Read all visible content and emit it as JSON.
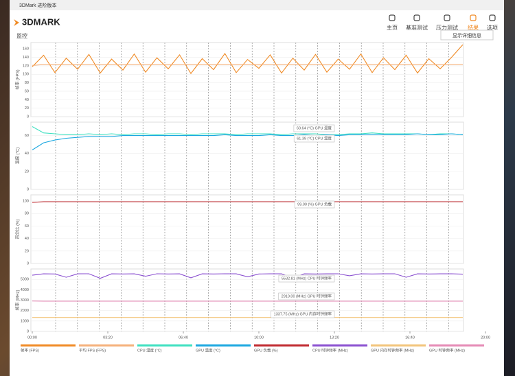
{
  "window": {
    "title": "3DMark 进阶版本"
  },
  "header": {
    "logo": "3DMARK",
    "nav": [
      "主页",
      "基准测试",
      "压力测试",
      "结果",
      "选项"
    ],
    "active": 3,
    "button": "显示详细信息"
  },
  "section": {
    "title": "监控"
  },
  "chart_data": [
    {
      "type": "line",
      "ylabel": "帧率 (FPS)",
      "grid": true,
      "x": [
        0,
        30,
        60,
        90,
        120,
        150,
        180,
        210,
        240,
        270,
        300,
        330,
        360,
        390,
        420,
        450,
        480,
        510,
        540,
        570,
        600,
        630,
        660,
        690,
        720,
        750,
        780,
        810,
        840,
        870,
        900,
        930,
        960,
        990,
        1020,
        1050,
        1080,
        1110,
        1140
      ],
      "xlim": [
        0,
        1200
      ],
      "ylim": [
        0,
        175
      ],
      "yticks": [
        0,
        20,
        40,
        60,
        80,
        100,
        120,
        140,
        160
      ],
      "series": [
        {
          "name": "帧率 (FPS)",
          "color": "#f08a24",
          "values": [
            118,
            145,
            104,
            138,
            112,
            147,
            103,
            136,
            110,
            148,
            105,
            139,
            113,
            146,
            102,
            137,
            111,
            149,
            104,
            135,
            114,
            146,
            103,
            138,
            110,
            147,
            105,
            136,
            112,
            148,
            104,
            139,
            111,
            145,
            103,
            137,
            113,
            140,
            170
          ]
        },
        {
          "name": "平均 FPS (FPS)",
          "color": "#f5b07a",
          "values": [
            121,
            123,
            123,
            123,
            123,
            123,
            123,
            123,
            123,
            123,
            123,
            123,
            123,
            123,
            123,
            123,
            123,
            123,
            123,
            123,
            123,
            123,
            123,
            123,
            123,
            123,
            123,
            123,
            123,
            123,
            123,
            123,
            123,
            123,
            123,
            123,
            123,
            123,
            123
          ]
        }
      ],
      "annotations": []
    },
    {
      "type": "line",
      "ylabel": "温度 (°C)",
      "grid": true,
      "x": [
        0,
        30,
        60,
        90,
        120,
        150,
        180,
        210,
        240,
        270,
        300,
        330,
        360,
        390,
        420,
        450,
        480,
        510,
        540,
        570,
        600,
        630,
        660,
        690,
        720,
        750,
        780,
        810,
        840,
        870,
        900,
        930,
        960,
        990,
        1020,
        1050,
        1080,
        1110,
        1140
      ],
      "xlim": [
        0,
        1200
      ],
      "ylim": [
        0,
        75
      ],
      "yticks": [
        0,
        20,
        40,
        60
      ],
      "series": [
        {
          "name": "CPU 温度 (°C)",
          "color": "#3de0c0",
          "values": [
            70,
            63,
            62,
            61,
            61,
            62,
            61,
            62,
            61,
            62,
            62,
            61,
            62,
            62,
            61,
            62,
            62,
            62,
            61,
            62,
            62,
            62,
            61,
            62,
            62,
            62,
            61,
            61,
            62,
            62,
            63,
            62,
            62,
            62,
            62,
            61,
            62,
            62,
            61
          ]
        },
        {
          "name": "GPU 温度 (°C)",
          "color": "#1aa7e0",
          "values": [
            44,
            52,
            55,
            57,
            58,
            59,
            59,
            59,
            60,
            60,
            60,
            60,
            60,
            60,
            60,
            60,
            60,
            61,
            60,
            60,
            60,
            61,
            60,
            60,
            61,
            60,
            61,
            60,
            61,
            61,
            61,
            61,
            61,
            61,
            62,
            61,
            61,
            62,
            61
          ]
        }
      ],
      "annotations": [
        "60.64 (°C) GPU 温度",
        "61.39 (°C) CPU 温度"
      ]
    },
    {
      "type": "line",
      "ylabel": "百分比 (%)",
      "grid": true,
      "x": [
        0,
        30,
        60,
        90,
        120,
        150,
        180,
        210,
        240,
        270,
        300,
        330,
        360,
        390,
        420,
        450,
        480,
        510,
        540,
        570,
        600,
        630,
        660,
        690,
        720,
        750,
        780,
        810,
        840,
        870,
        900,
        930,
        960,
        990,
        1020,
        1050,
        1080,
        1110,
        1140
      ],
      "xlim": [
        0,
        1200
      ],
      "ylim": [
        0,
        110
      ],
      "yticks": [
        0,
        20,
        40,
        60,
        80,
        100
      ],
      "series": [
        {
          "name": "GPU 负载 (%)",
          "color": "#c0282e",
          "values": [
            98,
            99,
            99,
            99,
            99,
            99,
            99,
            99,
            99,
            99,
            99,
            99,
            99,
            99,
            99,
            99,
            99,
            99,
            99,
            99,
            99,
            99,
            99,
            99,
            99,
            99,
            99,
            99,
            99,
            99,
            99,
            99,
            99,
            99,
            99,
            99,
            99,
            99,
            99
          ]
        }
      ],
      "annotations": [
        "99.00 (%) GPU 负载"
      ]
    },
    {
      "type": "line",
      "ylabel": "频率 (MHz)",
      "grid": true,
      "x": [
        0,
        30,
        60,
        90,
        120,
        150,
        180,
        210,
        240,
        270,
        300,
        330,
        360,
        390,
        420,
        450,
        480,
        510,
        540,
        570,
        600,
        630,
        660,
        690,
        720,
        750,
        780,
        810,
        840,
        870,
        900,
        930,
        960,
        990,
        1020,
        1050,
        1080,
        1110,
        1140
      ],
      "xlim": [
        0,
        1200
      ],
      "ylim": [
        0,
        6000
      ],
      "yticks": [
        0,
        1000,
        2000,
        3000,
        4000,
        5000
      ],
      "xticks": [
        {
          "value": 0,
          "label": "00:00"
        },
        {
          "value": 200,
          "label": "03:20"
        },
        {
          "value": 400,
          "label": "06:40"
        },
        {
          "value": 600,
          "label": "10:00"
        },
        {
          "value": 800,
          "label": "13:20"
        },
        {
          "value": 1000,
          "label": "16:40"
        },
        {
          "value": 1200,
          "label": "20:00"
        }
      ],
      "series": [
        {
          "name": "CPU 时钟频率 (MHz)",
          "color": "#8a4fd0",
          "values": [
            5400,
            5530,
            5520,
            5200,
            5530,
            5540,
            5100,
            5530,
            5520,
            5530,
            5300,
            5540,
            5520,
            5530,
            5150,
            5530,
            5520,
            5540,
            5530,
            5250,
            5520,
            5530,
            5540,
            5100,
            5530,
            5520,
            5530,
            5540,
            5350,
            5530,
            5520,
            5530,
            5540,
            5200,
            5530,
            5520,
            5530,
            5540,
            5500
          ]
        },
        {
          "name": "GPU 内存时钟频率 (MHz)",
          "color": "#f2c47a",
          "values": [
            1338,
            1338,
            1338,
            1338,
            1338,
            1338,
            1338,
            1338,
            1338,
            1338,
            1338,
            1338,
            1338,
            1338,
            1338,
            1338,
            1338,
            1338,
            1338,
            1338,
            1338,
            1338,
            1338,
            1338,
            1338,
            1338,
            1338,
            1338,
            1338,
            1338,
            1338,
            1338,
            1338,
            1338,
            1338,
            1338,
            1338,
            1338,
            1338
          ]
        },
        {
          "name": "GPU 时钟频率 (MHz)",
          "color": "#e58ab5",
          "values": [
            2920,
            2910,
            2910,
            2910,
            2910,
            2910,
            2910,
            2910,
            2910,
            2910,
            2910,
            2910,
            2910,
            2910,
            2910,
            2910,
            2910,
            2910,
            2910,
            2910,
            2910,
            2910,
            2910,
            2910,
            2910,
            2910,
            2910,
            2910,
            2910,
            2910,
            2910,
            2910,
            2910,
            2910,
            2910,
            2910,
            2910,
            2910,
            2910
          ]
        }
      ],
      "annotations": [
        "5532.81 (MHz) CPU 时钟频率",
        "2910.00 (MHz) GPU 时钟频率",
        "1337.75 (MHz) GPU 内存时钟频率"
      ]
    }
  ]
}
